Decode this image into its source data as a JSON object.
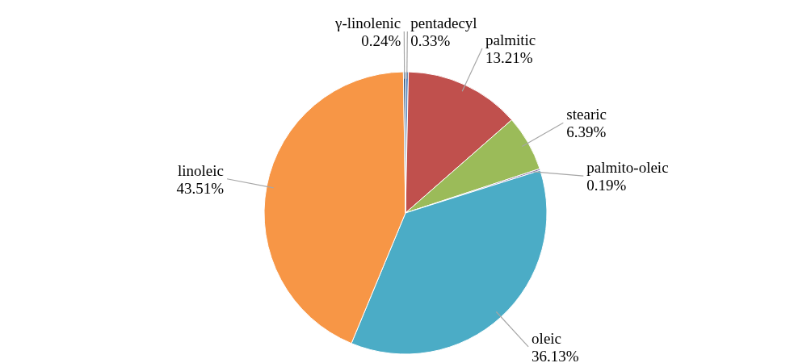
{
  "chart_data": {
    "type": "pie",
    "categories": [
      "pentadecyl",
      "palmitic",
      "stearic",
      "palmito-oleic",
      "oleic",
      "linoleic",
      "γ-linolenic"
    ],
    "values": [
      0.33,
      13.21,
      6.39,
      0.19,
      36.13,
      43.51,
      0.24
    ],
    "value_labels": [
      "0.33%",
      "13.21%",
      "6.39%",
      "0.19%",
      "36.13%",
      "43.51%",
      "0.24%"
    ],
    "colors": [
      "#4f81bd",
      "#c0504d",
      "#9bbb59",
      "#8064a2",
      "#4bacc6",
      "#f79646",
      "#2c4d75"
    ],
    "legend": false
  }
}
